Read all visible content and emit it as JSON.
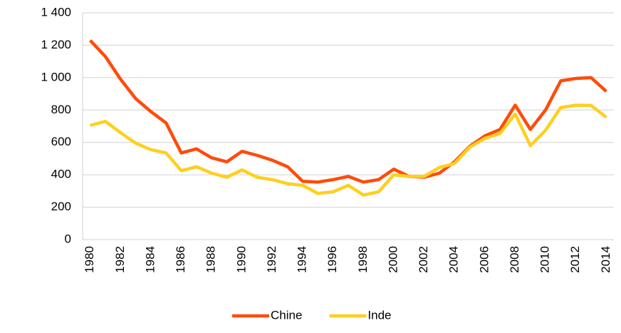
{
  "chart_data": {
    "type": "line",
    "categories": [
      "1980",
      null,
      "1982",
      null,
      "1984",
      null,
      "1986",
      null,
      "1988",
      null,
      "1990",
      null,
      "1992",
      null,
      "1994",
      null,
      "1996",
      null,
      "1998",
      null,
      "2000",
      null,
      "2002",
      null,
      "2004",
      null,
      "2006",
      null,
      "2008",
      null,
      "2010",
      null,
      "2012",
      null,
      "2014"
    ],
    "series": [
      {
        "name": "Chine",
        "color": "#ff4b0a",
        "values": [
          1230,
          1130,
          990,
          870,
          790,
          720,
          535,
          560,
          505,
          480,
          545,
          520,
          490,
          450,
          360,
          355,
          370,
          390,
          355,
          370,
          435,
          390,
          385,
          410,
          480,
          575,
          640,
          680,
          830,
          680,
          800,
          980,
          995,
          1000,
          915
        ]
      },
      {
        "name": "Inde",
        "color": "#ffcf1f",
        "values": [
          705,
          730,
          660,
          595,
          555,
          535,
          425,
          450,
          410,
          385,
          430,
          385,
          370,
          345,
          335,
          285,
          295,
          335,
          275,
          295,
          400,
          390,
          390,
          445,
          470,
          570,
          625,
          655,
          775,
          580,
          675,
          815,
          830,
          828,
          755
        ]
      }
    ],
    "ylim": [
      0,
      1400
    ],
    "yticks": [
      0,
      {
        "value": 200,
        "label": "200"
      },
      {
        "value": 400,
        "label": "400"
      },
      {
        "value": 600,
        "label": "600"
      },
      {
        "value": 800,
        "label": "800"
      },
      {
        "value": 1000,
        "label": "1 000"
      },
      {
        "value": 1200,
        "label": "1 200"
      },
      {
        "value": 1400,
        "label": "1 400"
      }
    ],
    "grid": true,
    "legend": "bottom"
  }
}
